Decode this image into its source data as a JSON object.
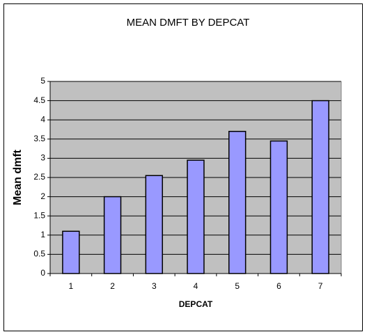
{
  "chart_data": {
    "type": "bar",
    "title": "MEAN DMFT BY DEPCAT",
    "x_label": "DEPCAT",
    "y_label": "Mean dmft",
    "categories": [
      "1",
      "2",
      "3",
      "4",
      "5",
      "6",
      "7"
    ],
    "values": [
      1.1,
      2.0,
      2.55,
      2.95,
      3.7,
      3.45,
      4.5
    ],
    "color": "#9999ff",
    "ylim": [
      0,
      5
    ],
    "yticks": [
      0,
      0.5,
      1,
      1.5,
      2,
      2.5,
      3,
      3.5,
      4,
      4.5,
      5
    ],
    "grid": true
  }
}
